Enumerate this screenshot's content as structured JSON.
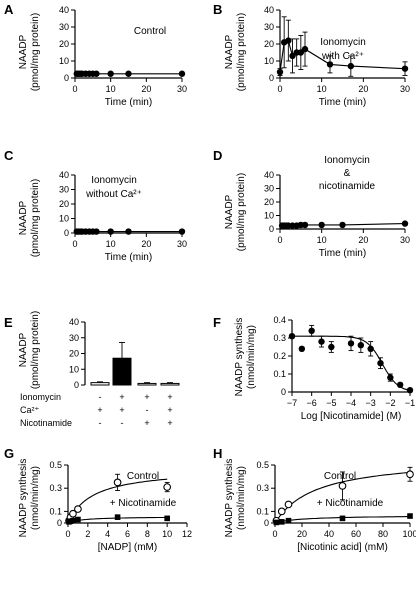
{
  "panels": [
    {
      "id": "A",
      "label": "A",
      "annotations": [
        "Control"
      ],
      "ylabel": [
        "NAADP",
        "(pmol/mg protein)"
      ],
      "xlabel": "Time (min)",
      "chart_data": {
        "type": "line",
        "xlim": [
          0,
          30
        ],
        "ylim": [
          0,
          40
        ],
        "xticks": [
          0,
          10,
          20,
          30
        ],
        "yticks": [
          0,
          10,
          20,
          30,
          40
        ],
        "series": [
          {
            "marker": "circle-filled",
            "points": [
              {
                "x": 0.5,
                "y": 2.5,
                "err": 1
              },
              {
                "x": 1,
                "y": 2.5,
                "err": 1
              },
              {
                "x": 1.5,
                "y": 2.5,
                "err": 1
              },
              {
                "x": 2,
                "y": 2.5,
                "err": 1
              },
              {
                "x": 3,
                "y": 2.5,
                "err": 1
              },
              {
                "x": 4,
                "y": 2.5,
                "err": 1
              },
              {
                "x": 5,
                "y": 2.5,
                "err": 1
              },
              {
                "x": 6,
                "y": 2.5,
                "err": 1
              },
              {
                "x": 10,
                "y": 2.5,
                "err": 1
              },
              {
                "x": 15,
                "y": 2.5,
                "err": 1
              },
              {
                "x": 30,
                "y": 2.5,
                "err": 1
              }
            ]
          }
        ]
      }
    },
    {
      "id": "B",
      "label": "B",
      "annotations": [
        "Ionomycin",
        "with Ca²⁺"
      ],
      "ylabel": [
        "NAADP",
        "(pmol/mg protein)"
      ],
      "xlabel": "Time (min)",
      "chart_data": {
        "type": "line",
        "xlim": [
          0,
          30
        ],
        "ylim": [
          0,
          40
        ],
        "xticks": [
          0,
          10,
          20,
          30
        ],
        "yticks": [
          0,
          10,
          20,
          30,
          40
        ],
        "series": [
          {
            "marker": "circle-filled",
            "points": [
              {
                "x": 0,
                "y": 3.5,
                "err": 2
              },
              {
                "x": 1,
                "y": 21,
                "err": 15
              },
              {
                "x": 2,
                "y": 22,
                "err": 12
              },
              {
                "x": 3,
                "y": 13,
                "err": 10
              },
              {
                "x": 4,
                "y": 15,
                "err": 8
              },
              {
                "x": 5,
                "y": 15,
                "err": 10
              },
              {
                "x": 6,
                "y": 17,
                "err": 10
              },
              {
                "x": 12,
                "y": 8,
                "err": 5
              },
              {
                "x": 17,
                "y": 7,
                "err": 6
              },
              {
                "x": 30,
                "y": 5.5,
                "err": 4
              }
            ]
          }
        ]
      }
    },
    {
      "id": "C",
      "label": "C",
      "annotations": [
        "Ionomycin",
        "without Ca²⁺"
      ],
      "ylabel": [
        "NAADP",
        "(pmol/mg protein)"
      ],
      "xlabel": "Time (min)",
      "chart_data": {
        "type": "line",
        "xlim": [
          0,
          30
        ],
        "ylim": [
          0,
          40
        ],
        "xticks": [
          0,
          10,
          20,
          30
        ],
        "yticks": [
          0,
          10,
          20,
          30,
          40
        ],
        "series": [
          {
            "marker": "circle-filled",
            "points": [
              {
                "x": 0.5,
                "y": 1,
                "err": 1
              },
              {
                "x": 1,
                "y": 1,
                "err": 1
              },
              {
                "x": 1.5,
                "y": 1,
                "err": 1
              },
              {
                "x": 2,
                "y": 1,
                "err": 1
              },
              {
                "x": 3,
                "y": 1,
                "err": 1
              },
              {
                "x": 4,
                "y": 1,
                "err": 1
              },
              {
                "x": 5,
                "y": 1,
                "err": 1
              },
              {
                "x": 6,
                "y": 1,
                "err": 1
              },
              {
                "x": 10,
                "y": 1,
                "err": 1
              },
              {
                "x": 15,
                "y": 1,
                "err": 1
              },
              {
                "x": 30,
                "y": 1,
                "err": 1
              }
            ]
          }
        ]
      }
    },
    {
      "id": "D",
      "label": "D",
      "annotations": [
        "Ionomycin",
        "&",
        "nicotinamide"
      ],
      "ylabel": [
        "NAADP",
        "(pmol/mg protein)"
      ],
      "xlabel": "Time (min)",
      "chart_data": {
        "type": "line",
        "xlim": [
          0,
          30
        ],
        "ylim": [
          0,
          40
        ],
        "xticks": [
          0,
          10,
          20,
          30
        ],
        "yticks": [
          0,
          10,
          20,
          30,
          40
        ],
        "series": [
          {
            "marker": "circle-filled",
            "points": [
              {
                "x": 0.5,
                "y": 2.5,
                "err": 1
              },
              {
                "x": 1,
                "y": 2.5,
                "err": 1
              },
              {
                "x": 1.5,
                "y": 2.5,
                "err": 1
              },
              {
                "x": 2,
                "y": 2.5,
                "err": 1
              },
              {
                "x": 3,
                "y": 2.5,
                "err": 1
              },
              {
                "x": 4,
                "y": 2.5,
                "err": 1
              },
              {
                "x": 5,
                "y": 3,
                "err": 1
              },
              {
                "x": 6,
                "y": 3,
                "err": 1
              },
              {
                "x": 10,
                "y": 3,
                "err": 1
              },
              {
                "x": 15,
                "y": 3,
                "err": 1
              },
              {
                "x": 30,
                "y": 4,
                "err": 1
              }
            ]
          }
        ]
      }
    },
    {
      "id": "E",
      "label": "E",
      "ylabel": [
        "NAADP",
        "(pmol/mg protein)"
      ],
      "chart_data": {
        "type": "bar",
        "ylim": [
          0,
          40
        ],
        "yticks": [
          0,
          10,
          20,
          30,
          40
        ],
        "values": [
          1.5,
          17,
          1,
          1
        ],
        "errors": [
          0.5,
          10,
          0.5,
          0.5
        ],
        "fills": [
          "#ffffff",
          "#000000",
          "#ffffff",
          "#ffffff"
        ],
        "conditions": [
          {
            "name": "Ionomycin",
            "signs": [
              "-",
              "+",
              "+",
              "+"
            ]
          },
          {
            "name": "Ca²⁺",
            "signs": [
              "+",
              "+",
              "-",
              "+"
            ]
          },
          {
            "name": "Nicotinamide",
            "signs": [
              "-",
              "-",
              "+",
              "+"
            ]
          }
        ]
      }
    },
    {
      "id": "F",
      "label": "F",
      "ylabel": [
        "NAADP synthesis",
        "(nmol/min/mg)"
      ],
      "xlabel": "Log [Nicotinamide] (M)",
      "chart_data": {
        "type": "scatter",
        "xlim": [
          -7,
          -1
        ],
        "ylim": [
          0,
          0.4
        ],
        "xticks": [
          -7,
          -6,
          -5,
          -4,
          -3,
          -2,
          -1
        ],
        "yticks": [
          0,
          0.1,
          0.2,
          0.3,
          0.4
        ],
        "ytick_labels": [
          "0",
          "0.1",
          "0.2",
          "0.3",
          "0.4"
        ],
        "fit": "inhibition-curve",
        "series": [
          {
            "marker": "circle-filled",
            "points": [
              {
                "x": -7,
                "y": 0.31,
                "err": 0.01
              },
              {
                "x": -6.5,
                "y": 0.24,
                "err": 0.01
              },
              {
                "x": -6,
                "y": 0.34,
                "err": 0.03
              },
              {
                "x": -5.5,
                "y": 0.28,
                "err": 0.03
              },
              {
                "x": -5,
                "y": 0.25,
                "err": 0.03
              },
              {
                "x": -4,
                "y": 0.27,
                "err": 0.04
              },
              {
                "x": -3.5,
                "y": 0.26,
                "err": 0.04
              },
              {
                "x": -3,
                "y": 0.24,
                "err": 0.04
              },
              {
                "x": -2.5,
                "y": 0.16,
                "err": 0.03
              },
              {
                "x": -2,
                "y": 0.08,
                "err": 0.02
              },
              {
                "x": -1.5,
                "y": 0.04,
                "err": 0.01
              },
              {
                "x": -1,
                "y": 0.01,
                "err": 0.01
              }
            ]
          }
        ]
      }
    },
    {
      "id": "G",
      "label": "G",
      "ylabel": [
        "NAADP synthesis",
        "(nmol/min/mg)"
      ],
      "xlabel": "[NADP] (mM)",
      "chart_data": {
        "type": "scatter",
        "xlim": [
          0,
          12
        ],
        "ylim": [
          0,
          0.5
        ],
        "xticks": [
          0,
          2,
          4,
          6,
          8,
          10,
          12
        ],
        "yticks": [
          0,
          0.1,
          0.3,
          0.5
        ],
        "ytick_labels": [
          "0",
          "0.1",
          "0.3",
          "0.5"
        ],
        "fit": "saturation-curve",
        "series": [
          {
            "name": "Control",
            "marker": "circle-open",
            "points": [
              {
                "x": 0.1,
                "y": 0.02,
                "err": 0.01
              },
              {
                "x": 0.25,
                "y": 0.05,
                "err": 0.01
              },
              {
                "x": 0.5,
                "y": 0.08,
                "err": 0.01
              },
              {
                "x": 1,
                "y": 0.12,
                "err": 0.02
              },
              {
                "x": 5,
                "y": 0.35,
                "err": 0.07
              },
              {
                "x": 10,
                "y": 0.31,
                "err": 0.04
              }
            ]
          },
          {
            "name": "+ Nicotinamide",
            "marker": "square-filled",
            "points": [
              {
                "x": 0.1,
                "y": 0.01,
                "err": 0.005
              },
              {
                "x": 0.25,
                "y": 0.015,
                "err": 0.005
              },
              {
                "x": 0.5,
                "y": 0.02,
                "err": 0.005
              },
              {
                "x": 1,
                "y": 0.03,
                "err": 0.01
              },
              {
                "x": 5,
                "y": 0.05,
                "err": 0.02
              },
              {
                "x": 10,
                "y": 0.04,
                "err": 0.01
              }
            ]
          }
        ]
      }
    },
    {
      "id": "H",
      "label": "H",
      "ylabel": [
        "NAADP synthesis",
        "(nmol/min/mg)"
      ],
      "xlabel": "[Nicotinic acid] (mM)",
      "chart_data": {
        "type": "scatter",
        "xlim": [
          0,
          100
        ],
        "ylim": [
          0,
          0.5
        ],
        "xticks": [
          0,
          20,
          40,
          60,
          80,
          100
        ],
        "yticks": [
          0,
          0.1,
          0.3,
          0.5
        ],
        "ytick_labels": [
          "0",
          "0.1",
          "0.3",
          "0.5"
        ],
        "fit": "saturation-curve",
        "series": [
          {
            "name": "Control",
            "marker": "circle-open",
            "points": [
              {
                "x": 1,
                "y": 0.02,
                "err": 0.01
              },
              {
                "x": 5,
                "y": 0.1,
                "err": 0.01
              },
              {
                "x": 10,
                "y": 0.16,
                "err": 0.02
              },
              {
                "x": 50,
                "y": 0.32,
                "err": 0.12
              },
              {
                "x": 100,
                "y": 0.42,
                "err": 0.06
              }
            ]
          },
          {
            "name": "+ Nicotinamide",
            "marker": "square-filled",
            "points": [
              {
                "x": 1,
                "y": 0.005,
                "err": 0.005
              },
              {
                "x": 5,
                "y": 0.01,
                "err": 0.005
              },
              {
                "x": 10,
                "y": 0.02,
                "err": 0.005
              },
              {
                "x": 50,
                "y": 0.04,
                "err": 0.01
              },
              {
                "x": 100,
                "y": 0.06,
                "err": 0.01
              }
            ]
          }
        ]
      }
    }
  ]
}
